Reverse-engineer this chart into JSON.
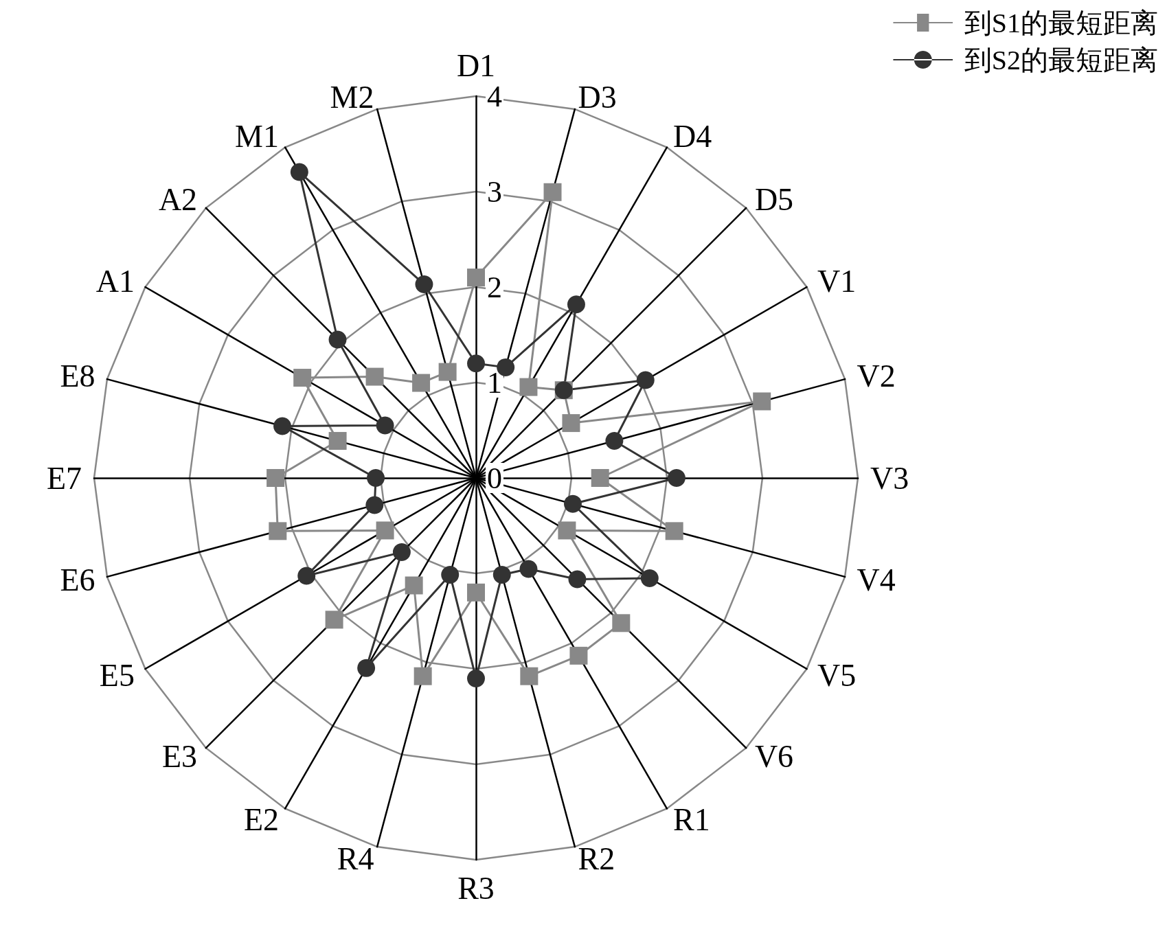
{
  "chart_data": {
    "type": "radar",
    "categories": [
      "D1",
      "D3",
      "D4",
      "D5",
      "V1",
      "V2",
      "V3",
      "V4",
      "V5",
      "V6",
      "R1",
      "R2",
      "R3",
      "R4",
      "E2",
      "E3",
      "E5",
      "E6",
      "E7",
      "E8",
      "A1",
      "A2",
      "M1",
      "M2"
    ],
    "ylim": [
      0,
      4
    ],
    "yticks": [
      0,
      1,
      2,
      3,
      4
    ],
    "legend": "top right",
    "series": [
      {
        "name": "到S1的最短距离",
        "color": "#888888",
        "marker": "square",
        "values": [
          2.1,
          3.1,
          1.1,
          1.3,
          1.15,
          3.1,
          1.3,
          2.15,
          1.1,
          2.15,
          2.15,
          2.15,
          1.2,
          2.15,
          1.3,
          2.1,
          1.1,
          2.15,
          2.1,
          1.5,
          2.1,
          1.5,
          1.15,
          1.15
        ]
      },
      {
        "name": "到S2的最短距离",
        "color": "#333333",
        "marker": "circle",
        "values": [
          1.2,
          1.2,
          2.1,
          1.3,
          2.05,
          1.5,
          2.1,
          1.05,
          2.1,
          1.5,
          1.1,
          1.05,
          2.1,
          1.05,
          2.3,
          1.1,
          2.05,
          1.1,
          1.05,
          2.1,
          1.1,
          2.05,
          3.7,
          2.1
        ]
      }
    ]
  }
}
